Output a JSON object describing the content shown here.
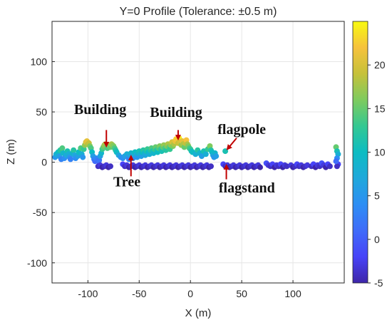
{
  "chart_data": {
    "type": "scatter",
    "title": "Y=0 Profile (Tolerance: ±0.5 m)",
    "xlabel": "X (m)",
    "ylabel": "Z (m)",
    "xlim": [
      -135,
      150
    ],
    "ylim": [
      -120,
      140
    ],
    "xticks": [
      -100,
      -50,
      0,
      50,
      100
    ],
    "yticks": [
      -100,
      -50,
      0,
      50,
      100
    ],
    "xtick_labels": [
      "-100",
      "-50",
      "0",
      "50",
      "100"
    ],
    "ytick_labels": [
      "-100",
      "-50",
      "0",
      "50",
      "100"
    ],
    "grid": true,
    "colorbar": {
      "colormap": "parula",
      "range": [
        -5,
        25
      ],
      "ticks": [
        -5,
        0,
        5,
        10,
        15,
        20
      ],
      "tick_labels": [
        "-5",
        "0",
        "5",
        "10",
        "15",
        "20"
      ]
    },
    "color_encodes": "Z (m)",
    "points_note": "approximate samples of the dense point cloud; color = z value",
    "points": [
      [
        -132,
        5
      ],
      [
        -131,
        8
      ],
      [
        -129,
        10
      ],
      [
        -128,
        6
      ],
      [
        -126,
        3
      ],
      [
        -127,
        12
      ],
      [
        -125,
        14
      ],
      [
        -124,
        9
      ],
      [
        -123,
        4
      ],
      [
        -121,
        7
      ],
      [
        -120,
        11
      ],
      [
        -119,
        8
      ],
      [
        -118,
        5
      ],
      [
        -117,
        3
      ],
      [
        -115,
        9
      ],
      [
        -114,
        12
      ],
      [
        -113,
        7
      ],
      [
        -112,
        4
      ],
      [
        -110,
        6
      ],
      [
        -109,
        10
      ],
      [
        -107,
        14
      ],
      [
        -106,
        8
      ],
      [
        -105,
        5
      ],
      [
        -104,
        13
      ],
      [
        -103,
        17
      ],
      [
        -102,
        20
      ],
      [
        -101,
        21
      ],
      [
        -100,
        18
      ],
      [
        -99,
        19
      ],
      [
        -98,
        16
      ],
      [
        -97,
        14
      ],
      [
        -96,
        10
      ],
      [
        -95,
        6
      ],
      [
        -94,
        3
      ],
      [
        -93,
        1
      ],
      [
        -92,
        4
      ],
      [
        -91,
        3
      ],
      [
        -90,
        1
      ],
      [
        -89,
        2
      ],
      [
        -88,
        6
      ],
      [
        -87,
        9
      ],
      [
        -86,
        13
      ],
      [
        -85,
        15
      ],
      [
        -84,
        17
      ],
      [
        -83,
        18
      ],
      [
        -82,
        16
      ],
      [
        -81,
        14
      ],
      [
        -80,
        17
      ],
      [
        -79,
        16
      ],
      [
        -78,
        15
      ],
      [
        -77,
        18
      ],
      [
        -76,
        17
      ],
      [
        -75,
        16
      ],
      [
        -74,
        14
      ],
      [
        -73,
        12
      ],
      [
        -72,
        10
      ],
      [
        -70,
        7
      ],
      [
        -68,
        5
      ],
      [
        -66,
        4
      ],
      [
        -64,
        6
      ],
      [
        -62,
        8
      ],
      [
        -61,
        5
      ],
      [
        -60,
        3
      ],
      [
        -59,
        7
      ],
      [
        -58,
        9
      ],
      [
        -57,
        6
      ],
      [
        -56,
        4
      ],
      [
        -55,
        8
      ],
      [
        -54,
        10
      ],
      [
        -53,
        7
      ],
      [
        -52,
        5
      ],
      [
        -51,
        9
      ],
      [
        -50,
        11
      ],
      [
        -49,
        8
      ],
      [
        -48,
        6
      ],
      [
        -47,
        10
      ],
      [
        -46,
        12
      ],
      [
        -45,
        9
      ],
      [
        -44,
        7
      ],
      [
        -43,
        11
      ],
      [
        -42,
        13
      ],
      [
        -41,
        10
      ],
      [
        -40,
        8
      ],
      [
        -39,
        12
      ],
      [
        -38,
        14
      ],
      [
        -37,
        11
      ],
      [
        -36,
        9
      ],
      [
        -35,
        13
      ],
      [
        -34,
        15
      ],
      [
        -33,
        12
      ],
      [
        -32,
        10
      ],
      [
        -31,
        14
      ],
      [
        -30,
        16
      ],
      [
        -29,
        13
      ],
      [
        -28,
        11
      ],
      [
        -27,
        15
      ],
      [
        -26,
        17
      ],
      [
        -25,
        14
      ],
      [
        -24,
        12
      ],
      [
        -23,
        16
      ],
      [
        -22,
        18
      ],
      [
        -21,
        15
      ],
      [
        -20,
        13
      ],
      [
        -19,
        17
      ],
      [
        -18,
        20
      ],
      [
        -17,
        16
      ],
      [
        -16,
        18
      ],
      [
        -15,
        21
      ],
      [
        -14,
        23
      ],
      [
        -13,
        22
      ],
      [
        -12,
        19
      ],
      [
        -11,
        24
      ],
      [
        -10,
        20
      ],
      [
        -9,
        17
      ],
      [
        -8,
        21
      ],
      [
        -7,
        18
      ],
      [
        -6,
        15
      ],
      [
        -5,
        19
      ],
      [
        -4,
        22
      ],
      [
        -3,
        18
      ],
      [
        -2,
        16
      ],
      [
        -1,
        14
      ],
      [
        0,
        13
      ],
      [
        1,
        11
      ],
      [
        2,
        10
      ],
      [
        5,
        8
      ],
      [
        7,
        12
      ],
      [
        9,
        9
      ],
      [
        11,
        6
      ],
      [
        13,
        11
      ],
      [
        15,
        8
      ],
      [
        17,
        13
      ],
      [
        19,
        16
      ],
      [
        20,
        12
      ],
      [
        21,
        10
      ],
      [
        22,
        7
      ],
      [
        23,
        5
      ],
      [
        24,
        9
      ],
      [
        25,
        6
      ],
      [
        34,
        11
      ],
      [
        -90,
        -4
      ],
      [
        -88,
        -3
      ],
      [
        -86,
        -5
      ],
      [
        -84,
        -4
      ],
      [
        -82,
        -3
      ],
      [
        -80,
        -5
      ],
      [
        -78,
        -4
      ],
      [
        -66,
        -2
      ],
      [
        -64,
        -4
      ],
      [
        -62,
        -3
      ],
      [
        -60,
        -5
      ],
      [
        -58,
        -4
      ],
      [
        -56,
        -3
      ],
      [
        -54,
        -5
      ],
      [
        -52,
        -4
      ],
      [
        -50,
        -3
      ],
      [
        -48,
        -5
      ],
      [
        -46,
        -4
      ],
      [
        -44,
        -3
      ],
      [
        -42,
        -5
      ],
      [
        -40,
        -4
      ],
      [
        -38,
        -3
      ],
      [
        -36,
        -5
      ],
      [
        -34,
        -4
      ],
      [
        -32,
        -3
      ],
      [
        -30,
        -5
      ],
      [
        -28,
        -4
      ],
      [
        -26,
        -3
      ],
      [
        -24,
        -5
      ],
      [
        -22,
        -4
      ],
      [
        -20,
        -3
      ],
      [
        -18,
        -5
      ],
      [
        -16,
        -4
      ],
      [
        -14,
        -3
      ],
      [
        -12,
        -5
      ],
      [
        -10,
        -4
      ],
      [
        -8,
        -3
      ],
      [
        -6,
        -5
      ],
      [
        -4,
        -4
      ],
      [
        -2,
        -3
      ],
      [
        0,
        -5
      ],
      [
        2,
        -4
      ],
      [
        4,
        -3
      ],
      [
        6,
        -5
      ],
      [
        8,
        -4
      ],
      [
        10,
        -3
      ],
      [
        12,
        -5
      ],
      [
        14,
        -4
      ],
      [
        16,
        -3
      ],
      [
        18,
        -5
      ],
      [
        20,
        -4
      ],
      [
        32,
        -2
      ],
      [
        34,
        -4
      ],
      [
        36,
        -3
      ],
      [
        38,
        -5
      ],
      [
        40,
        -4
      ],
      [
        42,
        -3
      ],
      [
        44,
        -5
      ],
      [
        46,
        -4
      ],
      [
        48,
        -3
      ],
      [
        50,
        -5
      ],
      [
        52,
        -4
      ],
      [
        54,
        -3
      ],
      [
        56,
        -5
      ],
      [
        58,
        -4
      ],
      [
        60,
        -3
      ],
      [
        62,
        -5
      ],
      [
        64,
        -4
      ],
      [
        66,
        -3
      ],
      [
        68,
        -5
      ],
      [
        74,
        -1
      ],
      [
        76,
        -3
      ],
      [
        78,
        -4
      ],
      [
        80,
        -2
      ],
      [
        82,
        -5
      ],
      [
        84,
        -3
      ],
      [
        86,
        -4
      ],
      [
        88,
        -2
      ],
      [
        90,
        -5
      ],
      [
        92,
        -3
      ],
      [
        94,
        -4
      ],
      [
        98,
        -3
      ],
      [
        100,
        -5
      ],
      [
        102,
        -4
      ],
      [
        104,
        -2
      ],
      [
        106,
        -4
      ],
      [
        108,
        -3
      ],
      [
        110,
        -5
      ],
      [
        112,
        -4
      ],
      [
        114,
        -3
      ],
      [
        118,
        -4
      ],
      [
        120,
        -2
      ],
      [
        122,
        -5
      ],
      [
        124,
        -3
      ],
      [
        126,
        -4
      ],
      [
        128,
        -1
      ],
      [
        130,
        -3
      ],
      [
        132,
        -5
      ],
      [
        134,
        -2
      ],
      [
        136,
        -4
      ],
      [
        142,
        15
      ],
      [
        143,
        11
      ],
      [
        144,
        8
      ],
      [
        143,
        4
      ],
      [
        144,
        -2
      ],
      [
        143,
        -4
      ],
      [
        142,
        1
      ]
    ],
    "annotations": [
      {
        "text": "Building",
        "x": -88,
        "y": 48,
        "arrow_from": [
          -82,
          32
        ],
        "arrow_to": [
          -82,
          16
        ]
      },
      {
        "text": "Building",
        "x": -14,
        "y": 45,
        "arrow_from": [
          -12,
          32
        ],
        "arrow_to": [
          -12,
          23
        ]
      },
      {
        "text": "flagpole",
        "x": 50,
        "y": 28,
        "arrow_from": [
          45,
          24
        ],
        "arrow_to": [
          36,
          13
        ]
      },
      {
        "text": "Tree",
        "x": -62,
        "y": -24,
        "arrow_from": [
          -58,
          -14
        ],
        "arrow_to": [
          -58,
          6
        ]
      },
      {
        "text": "flagstand",
        "x": 55,
        "y": -30,
        "arrow_from": [
          35,
          -17
        ],
        "arrow_to": [
          35,
          -3
        ]
      }
    ]
  }
}
